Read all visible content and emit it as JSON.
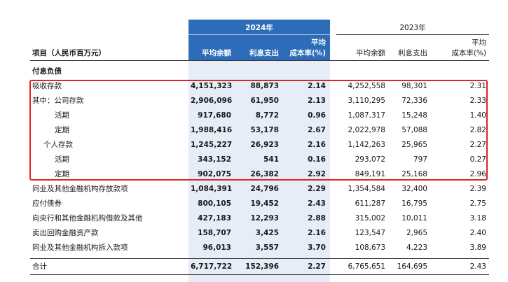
{
  "headers": {
    "year_2024": "2024年",
    "year_2023": "2023年",
    "item": "项目（人民币百万元）",
    "avg_balance": "平均余额",
    "interest_expense": "利息支出",
    "avg_cost_rate_line1": "平均",
    "avg_cost_rate_line2": "成本率(%)"
  },
  "section_label": "付息负债",
  "rows": [
    {
      "label": "吸收存款",
      "indent": 0,
      "v2024": [
        "4,151,323",
        "88,873",
        "2.14"
      ],
      "v2023": [
        "4,252,558",
        "98,301",
        "2.31"
      ]
    },
    {
      "label": "其中：公司存款",
      "indent": 0,
      "v2024": [
        "2,906,096",
        "61,950",
        "2.13"
      ],
      "v2023": [
        "3,110,295",
        "72,336",
        "2.33"
      ]
    },
    {
      "label": "活期",
      "indent": 2,
      "v2024": [
        "917,680",
        "8,772",
        "0.96"
      ],
      "v2023": [
        "1,087,317",
        "15,248",
        "1.40"
      ]
    },
    {
      "label": "定期",
      "indent": 2,
      "v2024": [
        "1,988,416",
        "53,178",
        "2.67"
      ],
      "v2023": [
        "2,022,978",
        "57,088",
        "2.82"
      ]
    },
    {
      "label": "个人存款",
      "indent": 1,
      "v2024": [
        "1,245,227",
        "26,923",
        "2.16"
      ],
      "v2023": [
        "1,142,263",
        "25,965",
        "2.27"
      ]
    },
    {
      "label": "活期",
      "indent": 2,
      "v2024": [
        "343,152",
        "541",
        "0.16"
      ],
      "v2023": [
        "293,072",
        "797",
        "0.27"
      ]
    },
    {
      "label": "定期",
      "indent": 2,
      "v2024": [
        "902,075",
        "26,382",
        "2.92"
      ],
      "v2023": [
        "849,191",
        "25,168",
        "2.96"
      ]
    },
    {
      "label": "同业及其他金融机构存放款项",
      "indent": 0,
      "v2024": [
        "1,084,391",
        "24,796",
        "2.29"
      ],
      "v2023": [
        "1,354,584",
        "32,400",
        "2.39"
      ]
    },
    {
      "label": "应付债券",
      "indent": 0,
      "v2024": [
        "800,105",
        "19,452",
        "2.43"
      ],
      "v2023": [
        "611,287",
        "16,795",
        "2.75"
      ]
    },
    {
      "label": "向央行和其他金融机构借款及其他",
      "indent": 0,
      "v2024": [
        "427,183",
        "12,293",
        "2.88"
      ],
      "v2023": [
        "315,002",
        "10,011",
        "3.18"
      ]
    },
    {
      "label": "卖出回购金融资产款",
      "indent": 0,
      "v2024": [
        "158,707",
        "3,425",
        "2.16"
      ],
      "v2023": [
        "123,547",
        "2,965",
        "2.40"
      ]
    },
    {
      "label": "同业及其他金融机构拆入款项",
      "indent": 0,
      "v2024": [
        "96,013",
        "3,557",
        "3.70"
      ],
      "v2023": [
        "108,673",
        "4,223",
        "3.89"
      ]
    }
  ],
  "total_row": {
    "label": "合计",
    "v2024": [
      "6,717,722",
      "152,396",
      "2.27"
    ],
    "v2023": [
      "6,765,651",
      "164,695",
      "2.43"
    ]
  },
  "highlight_color": "#e02323",
  "band_color": "#2c6cb8"
}
